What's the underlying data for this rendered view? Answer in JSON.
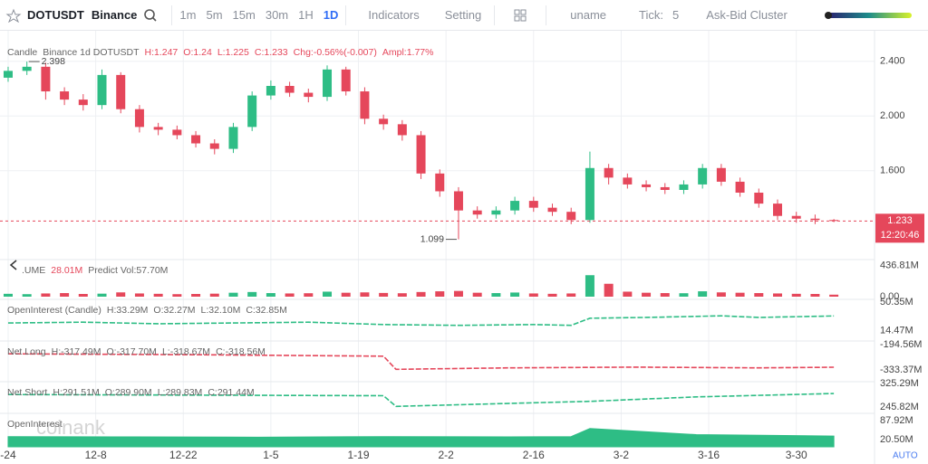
{
  "toolbar": {
    "symbol": "DOTUSDT",
    "exchange": "Binance",
    "intervals": [
      "1m",
      "5m",
      "15m",
      "30m",
      "1H",
      "1D"
    ],
    "indicators": "Indicators",
    "setting": "Setting",
    "user": "uname",
    "tick_label": "Tick:",
    "tick_value": "5",
    "cluster": "Ask-Bid Cluster"
  },
  "corner_label": "AUTO",
  "watermark": "coinank",
  "chart_data": [
    {
      "type": "candlestick",
      "header": [
        "Candle",
        "Binance 1d DOTUSDT",
        "H:1.247",
        "O:1.24",
        "L:1.225",
        "C:1.233",
        "Chg:-0.56%(-0.007)",
        "Ampl:1.77%"
      ],
      "x": [
        0,
        3,
        6,
        9,
        12,
        15,
        18,
        21,
        24,
        27,
        30,
        33,
        36,
        39,
        42,
        45,
        48,
        51,
        54,
        57,
        60,
        63,
        66,
        69,
        72,
        75,
        78,
        81,
        84,
        87,
        90,
        93,
        96,
        99,
        102,
        105,
        108,
        111,
        114,
        117,
        120,
        123,
        126,
        129,
        132
      ],
      "open": [
        2.28,
        2.33,
        2.36,
        2.18,
        2.12,
        2.08,
        2.3,
        2.05,
        1.92,
        1.9,
        1.86,
        1.8,
        1.76,
        1.92,
        2.15,
        2.22,
        2.17,
        2.14,
        2.34,
        2.18,
        1.98,
        1.94,
        1.86,
        1.58,
        1.45,
        1.31,
        1.28,
        1.31,
        1.38,
        1.33,
        1.3,
        1.24,
        1.62,
        1.55,
        1.5,
        1.48,
        1.46,
        1.5,
        1.62,
        1.52,
        1.44,
        1.36,
        1.27,
        1.25,
        1.24
      ],
      "high": [
        2.36,
        2.398,
        2.39,
        2.21,
        2.16,
        2.34,
        2.32,
        2.08,
        1.95,
        1.93,
        1.89,
        1.83,
        1.95,
        2.18,
        2.26,
        2.25,
        2.2,
        2.37,
        2.36,
        2.21,
        2.01,
        1.97,
        1.89,
        1.61,
        1.48,
        1.34,
        1.34,
        1.41,
        1.41,
        1.36,
        1.33,
        1.74,
        1.65,
        1.58,
        1.53,
        1.51,
        1.53,
        1.65,
        1.65,
        1.55,
        1.47,
        1.39,
        1.3,
        1.28,
        1.247
      ],
      "low": [
        2.25,
        2.3,
        2.12,
        2.08,
        2.04,
        2.05,
        2.02,
        1.88,
        1.86,
        1.83,
        1.77,
        1.72,
        1.73,
        1.89,
        2.12,
        2.14,
        2.1,
        2.11,
        2.15,
        1.94,
        1.9,
        1.82,
        1.54,
        1.41,
        1.099,
        1.25,
        1.25,
        1.28,
        1.3,
        1.27,
        1.21,
        1.22,
        1.5,
        1.47,
        1.45,
        1.43,
        1.43,
        1.47,
        1.49,
        1.41,
        1.33,
        1.24,
        1.22,
        1.21,
        1.225
      ],
      "close": [
        2.33,
        2.36,
        2.18,
        2.12,
        2.08,
        2.3,
        2.05,
        1.92,
        1.9,
        1.86,
        1.8,
        1.76,
        1.92,
        2.15,
        2.22,
        2.17,
        2.14,
        2.34,
        2.18,
        1.98,
        1.94,
        1.86,
        1.58,
        1.45,
        1.31,
        1.28,
        1.31,
        1.38,
        1.33,
        1.3,
        1.24,
        1.62,
        1.55,
        1.5,
        1.48,
        1.46,
        1.5,
        1.62,
        1.52,
        1.44,
        1.36,
        1.27,
        1.25,
        1.24,
        1.233
      ],
      "up_color": "#2ebd85",
      "down_color": "#e5475b",
      "xlim": [
        -1.3,
        138.5
      ],
      "xticks": [
        {
          "value": 0,
          "label": "-24"
        },
        {
          "value": 14,
          "label": "12-8"
        },
        {
          "value": 28,
          "label": "12-22"
        },
        {
          "value": 42,
          "label": "1-5"
        },
        {
          "value": 56,
          "label": "1-19"
        },
        {
          "value": 70,
          "label": "2-2"
        },
        {
          "value": 84,
          "label": "2-16"
        },
        {
          "value": 98,
          "label": "3-2"
        },
        {
          "value": 112,
          "label": "3-16"
        },
        {
          "value": 126,
          "label": "3-30"
        }
      ],
      "ylim": [
        0.984,
        2.557
      ],
      "yticks": [
        {
          "value": 1.6,
          "label": "1.600"
        },
        {
          "value": 2.0,
          "label": "2.000"
        },
        {
          "value": 2.4,
          "label": "2.400"
        }
      ],
      "grid": true,
      "annotations": [
        {
          "x": 3,
          "value": 2.398
        },
        {
          "x": 72,
          "value": 1.099
        }
      ],
      "last_price": {
        "value": 1.233,
        "label": "1.233",
        "countdown": "12:20:46"
      }
    },
    {
      "type": "bar",
      "header": [
        ".UME",
        "28.01M",
        "Predict Vol:57.70M"
      ],
      "x": [
        0,
        3,
        6,
        9,
        12,
        15,
        18,
        21,
        24,
        27,
        30,
        33,
        36,
        39,
        42,
        45,
        48,
        51,
        54,
        57,
        60,
        63,
        66,
        69,
        72,
        75,
        78,
        81,
        84,
        87,
        90,
        93,
        96,
        99,
        102,
        105,
        108,
        111,
        114,
        117,
        120,
        123,
        126,
        129,
        132
      ],
      "values": [
        40,
        35,
        45,
        50,
        38,
        42,
        60,
        45,
        40,
        35,
        38,
        42,
        55,
        65,
        50,
        45,
        48,
        70,
        55,
        60,
        52,
        48,
        65,
        75,
        80,
        55,
        50,
        58,
        45,
        40,
        45,
        300,
        180,
        70,
        55,
        50,
        48,
        75,
        60,
        55,
        50,
        45,
        40,
        38,
        28.01
      ],
      "ylim": [
        0,
        480
      ],
      "yticks": [
        {
          "value": 0,
          "label": "0.00"
        },
        {
          "value": 436.81,
          "label": "436.81M"
        }
      ]
    },
    {
      "type": "line",
      "header": [
        "OpenInterest (Candle)",
        "H:33.29M",
        "O:32.27M",
        "L:32.10M",
        "C:32.85M"
      ],
      "color": "#2ebd85",
      "x": [
        0,
        12,
        24,
        36,
        48,
        60,
        72,
        84,
        90,
        93,
        102,
        114,
        120,
        132
      ],
      "values": [
        24,
        25,
        23,
        24,
        25,
        22,
        21,
        22,
        21,
        30,
        31,
        33,
        31,
        32.85
      ],
      "ylim": [
        0.12,
        50.35
      ],
      "yticks": [
        {
          "value": 14.47,
          "label": "14.47M"
        },
        {
          "value": 50.35,
          "label": "50.35M"
        }
      ]
    },
    {
      "type": "line",
      "header": [
        "Net Long",
        "H:-317.49M",
        "O:-317.70M",
        "L:-318.67M",
        "C:-318.56M"
      ],
      "color": "#e5475b",
      "x": [
        0,
        30,
        60,
        62,
        80,
        100,
        120,
        132
      ],
      "values": [
        -245,
        -250,
        -258,
        -330,
        -322,
        -318,
        -322,
        -318.56
      ],
      "ylim": [
        -402.8,
        -189.6
      ],
      "yticks": [
        {
          "value": -333.37,
          "label": "-333.37M"
        },
        {
          "value": -194.56,
          "label": "-194.56M"
        }
      ]
    },
    {
      "type": "line",
      "header": [
        "Net Short",
        "H:291.51M",
        "O:289.90M",
        "L:289.83M",
        "C:291.44M"
      ],
      "color": "#2ebd85",
      "x": [
        0,
        30,
        60,
        62,
        80,
        93,
        110,
        132
      ],
      "values": [
        288,
        286,
        284,
        248,
        258,
        265,
        280,
        291.44
      ],
      "ylim": [
        221.4,
        322.2
      ],
      "yticks": [
        {
          "value": 245.82,
          "label": "245.82M"
        },
        {
          "value": 325.29,
          "label": "325.29M"
        }
      ]
    },
    {
      "type": "area",
      "header": [
        "OpenInterest"
      ],
      "color": "#2ebd85",
      "x": [
        0,
        20,
        40,
        60,
        80,
        90,
        93,
        110,
        132
      ],
      "values": [
        31,
        30,
        29,
        31,
        30,
        31,
        60,
        38,
        33
      ],
      "ylim": [
        -5.2,
        104
      ],
      "yticks": [
        {
          "value": 20.5,
          "label": "20.50M"
        },
        {
          "value": 87.92,
          "label": "87.92M"
        }
      ]
    }
  ]
}
